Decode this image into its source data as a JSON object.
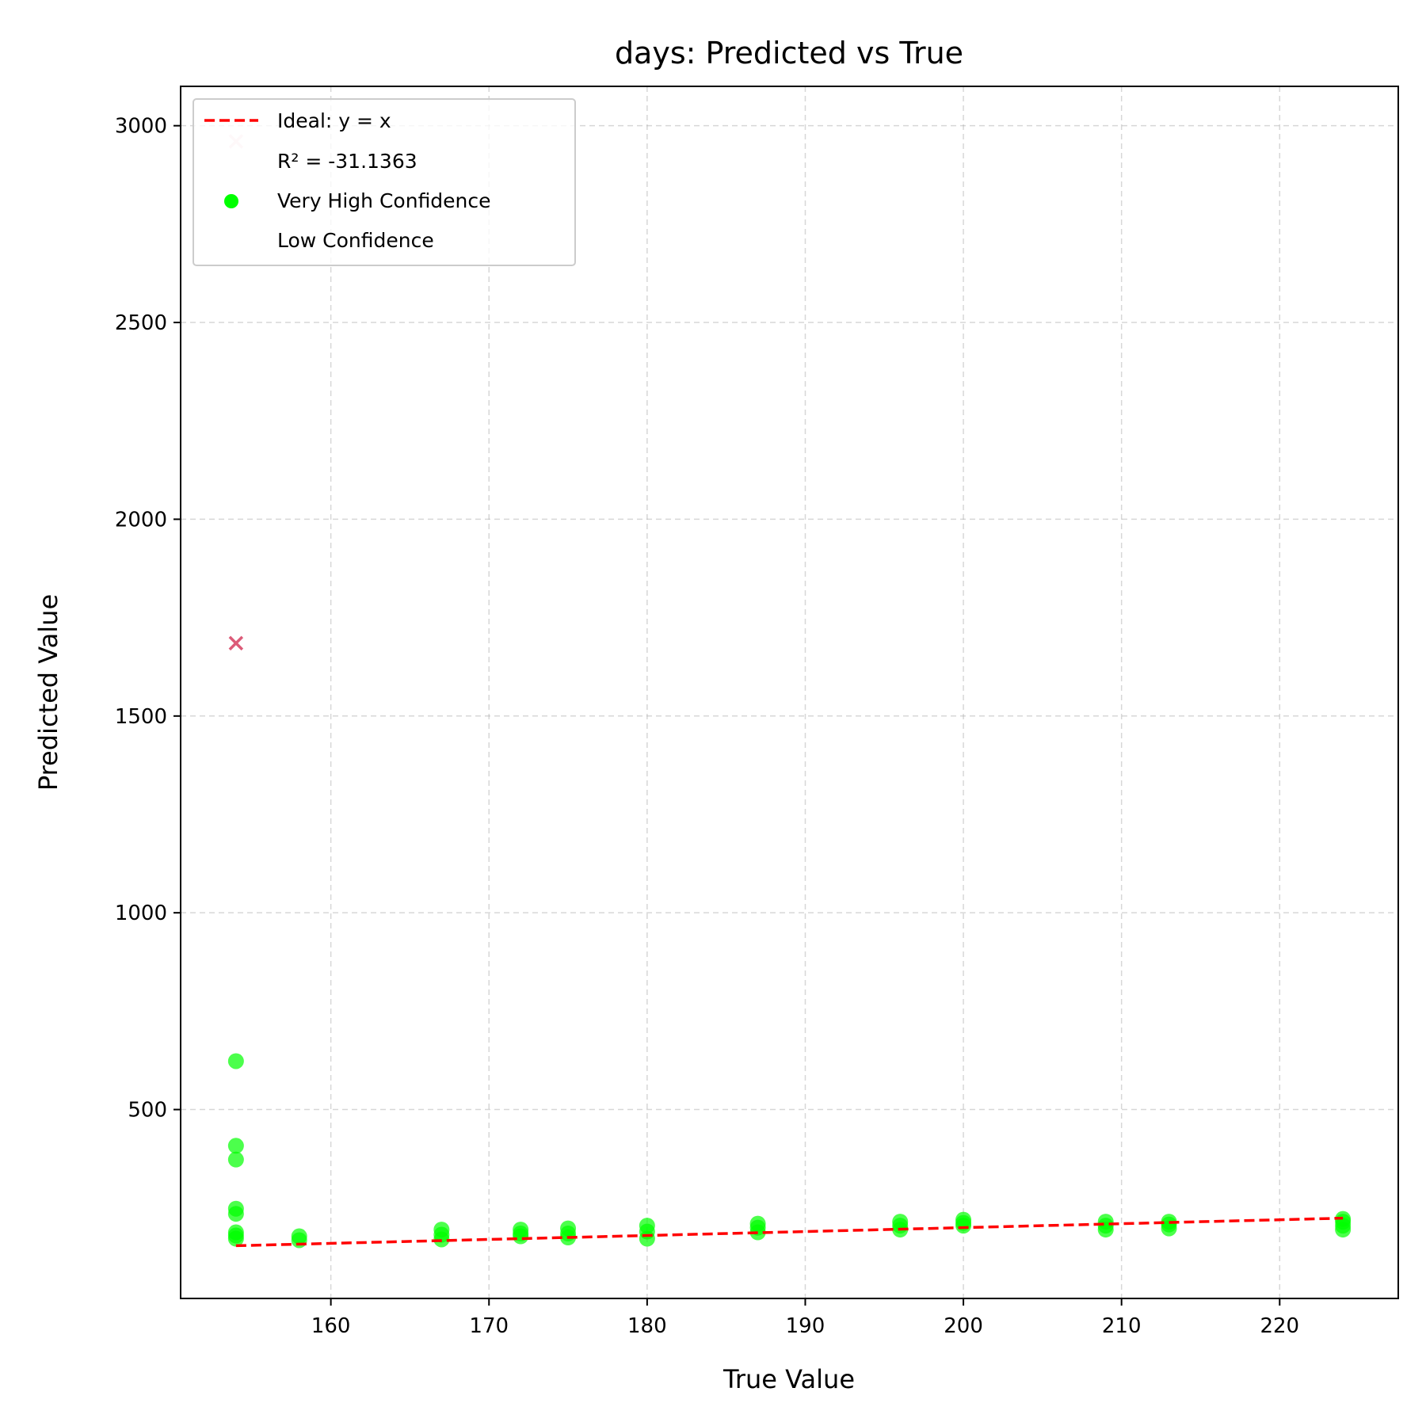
{
  "chart_data": {
    "type": "scatter",
    "title": "days: Predicted vs True",
    "xlabel": "True Value",
    "ylabel": "Predicted Value",
    "xlim": [
      150.5,
      227.5
    ],
    "ylim": [
      20,
      3100
    ],
    "xticks": [
      160,
      170,
      180,
      190,
      200,
      210,
      220
    ],
    "yticks": [
      500,
      1000,
      1500,
      2000,
      2500,
      3000
    ],
    "grid": true,
    "legend_position": "top-left",
    "ideal_line": {
      "name": "Ideal: y = x",
      "color": "#ff0000",
      "x": [
        154,
        224
      ],
      "y": [
        154,
        224
      ]
    },
    "r2_label": "R² = -31.1363",
    "series": [
      {
        "name": "Very High Confidence",
        "marker": "circle",
        "color": "#00ff00",
        "points": [
          [
            154,
            172
          ],
          [
            154,
            180
          ],
          [
            154,
            188
          ],
          [
            154,
            235
          ],
          [
            154,
            248
          ],
          [
            154,
            373
          ],
          [
            154,
            408
          ],
          [
            154,
            623
          ],
          [
            158,
            168
          ],
          [
            158,
            178
          ],
          [
            167,
            170
          ],
          [
            167,
            182
          ],
          [
            167,
            195
          ],
          [
            172,
            178
          ],
          [
            172,
            185
          ],
          [
            172,
            195
          ],
          [
            175,
            175
          ],
          [
            175,
            185
          ],
          [
            175,
            198
          ],
          [
            180,
            172
          ],
          [
            180,
            190
          ],
          [
            180,
            205
          ],
          [
            187,
            188
          ],
          [
            187,
            200
          ],
          [
            187,
            210
          ],
          [
            196,
            195
          ],
          [
            196,
            205
          ],
          [
            196,
            215
          ],
          [
            200,
            205
          ],
          [
            200,
            212
          ],
          [
            200,
            220
          ],
          [
            209,
            195
          ],
          [
            209,
            205
          ],
          [
            209,
            215
          ],
          [
            213,
            198
          ],
          [
            213,
            208
          ],
          [
            213,
            215
          ],
          [
            224,
            195
          ],
          [
            224,
            205
          ],
          [
            224,
            215
          ],
          [
            224,
            222
          ]
        ]
      },
      {
        "name": "Low Confidence",
        "marker": "x",
        "color": "#d94a6a",
        "points": [
          [
            154,
            1685
          ],
          [
            154,
            2960
          ]
        ]
      }
    ]
  }
}
